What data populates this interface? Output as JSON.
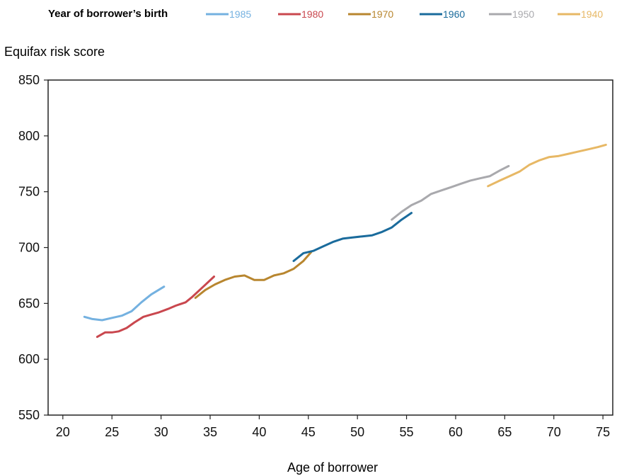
{
  "chart_data": {
    "type": "line",
    "legend_title": "Year of borrower’s birth",
    "ylabel": "Equifax risk score",
    "xlabel": "Age of borrower",
    "xlim": [
      18.5,
      76
    ],
    "ylim": [
      550,
      850
    ],
    "x_ticks": [
      20,
      25,
      30,
      35,
      40,
      45,
      50,
      55,
      60,
      65,
      70,
      75
    ],
    "y_ticks": [
      550,
      600,
      650,
      700,
      750,
      800,
      850
    ],
    "grid": false,
    "legend_position": "top",
    "series": [
      {
        "name": "1985",
        "color": "#74b1e0",
        "x": [
          22.2,
          23,
          24,
          25,
          26,
          27,
          28,
          29,
          30.3
        ],
        "y": [
          638,
          636,
          635,
          637,
          639,
          643,
          651,
          658,
          665
        ]
      },
      {
        "name": "1980",
        "color": "#c9474e",
        "x": [
          23.5,
          24.3,
          25,
          25.7,
          26.5,
          27.3,
          28.2,
          29,
          29.8,
          30.7,
          31.5,
          32.5,
          33.2,
          34.3,
          35.4
        ],
        "y": [
          620,
          624,
          624,
          625,
          628,
          633,
          638,
          640,
          642,
          645,
          648,
          651,
          656,
          665,
          674
        ]
      },
      {
        "name": "1970",
        "color": "#b8862f",
        "x": [
          33.5,
          34.5,
          35.5,
          36.5,
          37.5,
          38.5,
          39.5,
          40.5,
          41.5,
          42.5,
          43.5,
          44.5,
          45.3
        ],
        "y": [
          655,
          662,
          667,
          671,
          674,
          675,
          671,
          671,
          675,
          677,
          681,
          688,
          696
        ]
      },
      {
        "name": "1960",
        "color": "#1a6b9c",
        "x": [
          43.5,
          44.5,
          45.5,
          46.5,
          47.5,
          48.5,
          49.5,
          50.5,
          51.5,
          52.5,
          53.5,
          54.5,
          55.5
        ],
        "y": [
          688,
          695,
          697,
          701,
          705,
          708,
          709,
          710,
          711,
          714,
          718,
          725,
          731
        ]
      },
      {
        "name": "1950",
        "color": "#a9a9ad",
        "x": [
          53.5,
          54.5,
          55.5,
          56.5,
          57.5,
          58.5,
          59.5,
          60.5,
          61.5,
          62.5,
          63.5,
          64.5,
          65.4
        ],
        "y": [
          725,
          732,
          738,
          742,
          748,
          751,
          754,
          757,
          760,
          762,
          764,
          769,
          773
        ]
      },
      {
        "name": "1940",
        "color": "#e7b865",
        "x": [
          63.3,
          64.5,
          65.5,
          66.5,
          67.5,
          68.5,
          69.5,
          70.5,
          71.5,
          72.5,
          73.5,
          74.5,
          75.3
        ],
        "y": [
          755,
          760,
          764,
          768,
          774,
          778,
          781,
          782,
          784,
          786,
          788,
          790,
          792
        ]
      }
    ]
  }
}
